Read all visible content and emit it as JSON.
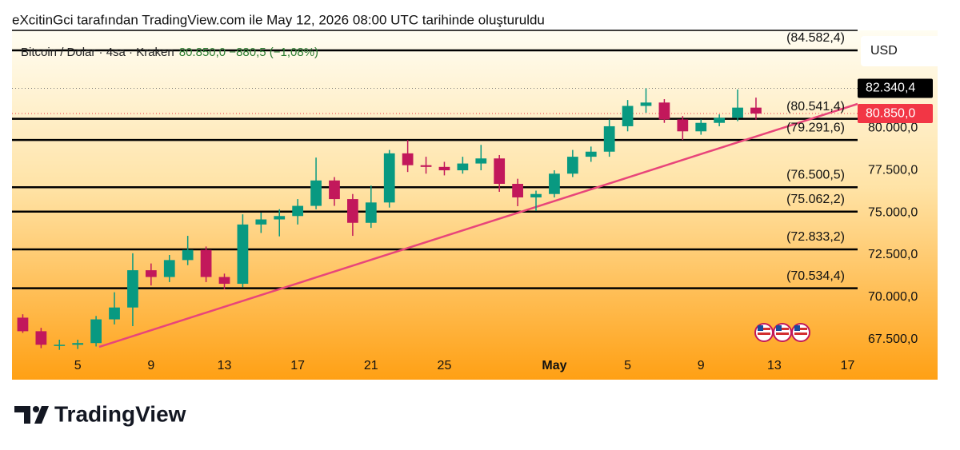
{
  "chart_data": {
    "type": "candlestick",
    "title": "eXcitinGci tarafından TradingView.com ile May 12, 2026 08:00 UTC tarihinde oluşturuldu",
    "symbol": "Bitcoin / Dolar · 4sa · Kraken",
    "quote": "80.850,0  −880,5 (−1,08%)",
    "currency": "USD",
    "brand": "TradingView",
    "categories": [
      null,
      null,
      null,
      "5",
      null,
      null,
      null,
      "9",
      null,
      null,
      null,
      "13",
      null,
      null,
      null,
      "17",
      null,
      null,
      null,
      "21",
      null,
      null,
      null,
      "25",
      null,
      null,
      null,
      null,
      null,
      "May",
      null,
      null,
      null,
      "5",
      null,
      null,
      null,
      "9",
      null,
      null,
      null,
      "13",
      null,
      null,
      null,
      "17"
    ],
    "open": [
      68800,
      68000,
      67200,
      67200,
      67300,
      68700,
      69400,
      71600,
      71200,
      72200,
      72800,
      71200,
      70800,
      74300,
      74600,
      74800,
      75400,
      76900,
      75800,
      74400,
      75600,
      78500,
      77800,
      77700,
      77500,
      77900,
      78200,
      76700,
      75900,
      76100,
      77300,
      78300,
      78600,
      80100,
      81300,
      81500,
      80500,
      79800,
      80300,
      80600,
      81200,
      null,
      null,
      null,
      null,
      null
    ],
    "high": [
      69000,
      68200,
      67500,
      67500,
      68900,
      70300,
      72600,
      72000,
      72500,
      73630,
      73000,
      71400,
      74900,
      75000,
      75200,
      75800,
      78250,
      77100,
      76100,
      76600,
      78700,
      79290,
      78300,
      78000,
      78300,
      79000,
      78400,
      77000,
      76300,
      77500,
      78700,
      78900,
      80500,
      81650,
      82340.4,
      81700,
      80700,
      80500,
      80800,
      82270,
      81790,
      null,
      null,
      null,
      null,
      null
    ],
    "low": [
      67900,
      67000,
      66900,
      66950,
      67100,
      68400,
      68300,
      70700,
      70900,
      71900,
      70900,
      70470,
      70600,
      73800,
      73600,
      74300,
      75200,
      75400,
      73630,
      74100,
      75300,
      77400,
      77300,
      77200,
      77300,
      77500,
      76230,
      75380,
      75100,
      75900,
      77100,
      78000,
      78300,
      79800,
      80900,
      80300,
      79290,
      79600,
      80100,
      80400,
      80500,
      null,
      null,
      null,
      null,
      null
    ],
    "close": [
      68000,
      67200,
      67200,
      67300,
      68700,
      69400,
      71600,
      71200,
      72200,
      72800,
      71200,
      70800,
      74300,
      74600,
      74800,
      75400,
      76900,
      75800,
      74400,
      75600,
      78500,
      77800,
      77700,
      77500,
      77900,
      78200,
      76700,
      75900,
      76100,
      77300,
      78300,
      78600,
      80100,
      81300,
      81500,
      80500,
      79800,
      80300,
      80600,
      81200,
      80850,
      null,
      null,
      null,
      null,
      null
    ],
    "up_color": "#089981",
    "down_color": "#c2185b",
    "ylim": [
      65140,
      85760
    ],
    "yticks": [
      {
        "value": 67500,
        "label": "67.500,0"
      },
      {
        "value": 70000,
        "label": "70.000,0"
      },
      {
        "value": 72500,
        "label": "72.500,0"
      },
      {
        "value": 75000,
        "label": "75.000,0"
      },
      {
        "value": 77500,
        "label": "77.500,0"
      },
      {
        "value": 80000,
        "label": "80.000,0"
      }
    ],
    "levels": [
      {
        "value": 84582.4,
        "label": "(84.582,4)"
      },
      {
        "value": 80541.4,
        "label": "(80.541,4)"
      },
      {
        "value": 79291.6,
        "label": "(79.291,6)"
      },
      {
        "value": 76500.5,
        "label": "(76.500,5)"
      },
      {
        "value": 75062.2,
        "label": "(75.062,2)"
      },
      {
        "value": 72833.2,
        "label": "(72.833,2)"
      },
      {
        "value": 70534.4,
        "label": "(70.534,4)"
      }
    ],
    "high_marker": {
      "value": 82340.4,
      "label": "82.340,4",
      "color": "#000000"
    },
    "last_price": {
      "value": 80850,
      "label": "80.850,0",
      "color": "#f23645"
    }
  }
}
